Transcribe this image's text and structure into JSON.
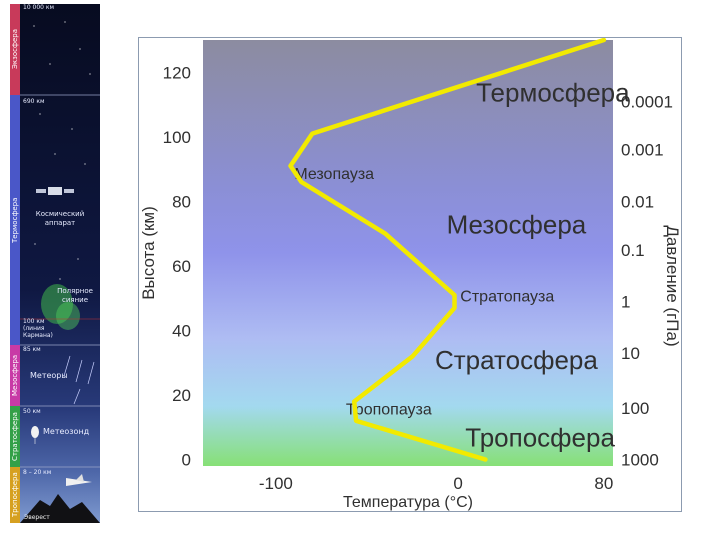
{
  "strip": {
    "layers": [
      {
        "name": "Экзосфера",
        "color": "#c83a5a"
      },
      {
        "name": "Термосфера",
        "color": "#4a57c8"
      },
      {
        "name": "Мезосфера",
        "color": "#c83aa6"
      },
      {
        "name": "Стратосфера",
        "color": "#33a048"
      },
      {
        "name": "Тропосфера",
        "color": "#d6a020"
      }
    ],
    "altitudes": {
      "top": "10 000 км",
      "thermo": "690 км",
      "aurora_min": "100 км",
      "aurora_note_1": "(линия",
      "aurora_note_2": "Кармана)",
      "meso": "85 км",
      "strato": "50 км",
      "tropo": "8 – 20 км"
    },
    "items": {
      "spacecraft_1": "Космический",
      "spacecraft_2": "аппарат",
      "aurora_1": "Полярное",
      "aurora_2": "сияние",
      "meteors": "Метеоры",
      "balloon": "Метеозонд",
      "everest": "Эверест"
    }
  },
  "chart_data": {
    "type": "line",
    "title": "",
    "xlabel": "Температура (°C)",
    "ylabel": "Высота (км)",
    "y2label": "Давление (гПа)",
    "xlim": [
      -140,
      85
    ],
    "ylim": [
      -2,
      130
    ],
    "xticks": [
      "-100",
      "0",
      "80"
    ],
    "yticks": [
      "0",
      "20",
      "40",
      "60",
      "80",
      "100",
      "120"
    ],
    "pressure_ticks": [
      {
        "alt": 0,
        "label": "1000"
      },
      {
        "alt": 16,
        "label": "100"
      },
      {
        "alt": 33,
        "label": "10"
      },
      {
        "alt": 49,
        "label": "1"
      },
      {
        "alt": 65,
        "label": "0.1"
      },
      {
        "alt": 80,
        "label": "0.01"
      },
      {
        "alt": 96,
        "label": "0.001"
      },
      {
        "alt": 111,
        "label": "0.0001"
      }
    ],
    "series": [
      {
        "color": "#f2ea00",
        "x": [
          15,
          -56,
          -57,
          -25,
          -2,
          -2,
          -40,
          -86,
          -92,
          -80,
          80
        ],
        "y": [
          0,
          12,
          18,
          32,
          47,
          51,
          70,
          86,
          91,
          101,
          130
        ]
      }
    ],
    "annotations": [
      {
        "text": "Термосфера",
        "x": 52,
        "y": 111,
        "size": 26
      },
      {
        "text": "Мезопауза",
        "x": -68,
        "y": 87,
        "size": 16
      },
      {
        "text": "Мезосфера",
        "x": 32,
        "y": 70,
        "size": 26
      },
      {
        "text": "Стратопауза",
        "x": 27,
        "y": 49,
        "size": 16
      },
      {
        "text": "Стратосфера",
        "x": 32,
        "y": 28,
        "size": 26
      },
      {
        "text": "Тропопауза",
        "x": -38,
        "y": 14,
        "size": 16
      },
      {
        "text": "Тропосфера",
        "x": 45,
        "y": 4,
        "size": 26
      }
    ],
    "background_gradient": [
      "#8c8ca0",
      "#8b8fd6",
      "#8f93ea",
      "#aebcf3",
      "#a3d9ef",
      "#87e076"
    ]
  }
}
